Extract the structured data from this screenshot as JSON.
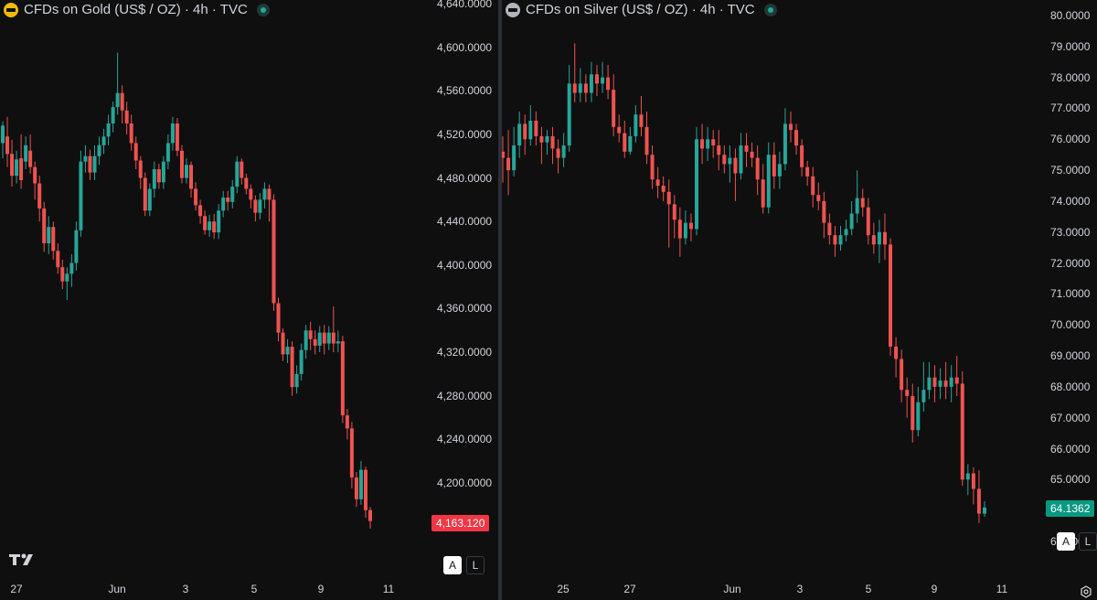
{
  "colors": {
    "up": "#26a69a",
    "down": "#ef5350",
    "bg": "#0f0f0f",
    "text": "#d1d4dc"
  },
  "left": {
    "legend": {
      "title": "CFDs on Gold (US$ / OZ) · 4h · TVC",
      "icon": "gold-icon"
    },
    "price_axis": [
      "4,640.0000",
      "4,600.0000",
      "4,560.0000",
      "4,520.0000",
      "4,480.0000",
      "4,440.0000",
      "4,400.0000",
      "4,360.0000",
      "4,320.0000",
      "4,280.0000",
      "4,240.0000",
      "4,200.0000"
    ],
    "last_price": "4,163.120",
    "time_axis": [
      "27",
      "Jun",
      "3",
      "5",
      "9",
      "11"
    ],
    "scale_buttons": {
      "auto": "A",
      "log": "L"
    },
    "candles": [
      [
        4512,
        4528,
        4498,
        4532
      ],
      [
        4518,
        4502,
        4490,
        4536
      ],
      [
        4502,
        4482,
        4472,
        4515
      ],
      [
        4482,
        4497,
        4475,
        4505
      ],
      [
        4498,
        4478,
        4470,
        4520
      ],
      [
        4495,
        4510,
        4488,
        4518
      ],
      [
        4505,
        4490,
        4484,
        4520
      ],
      [
        4490,
        4475,
        4460,
        4495
      ],
      [
        4475,
        4452,
        4440,
        4482
      ],
      [
        4452,
        4420,
        4412,
        4458
      ],
      [
        4420,
        4435,
        4410,
        4445
      ],
      [
        4435,
        4413,
        4405,
        4440
      ],
      [
        4413,
        4398,
        4392,
        4420
      ],
      [
        4398,
        4385,
        4378,
        4405
      ],
      [
        4385,
        4392,
        4368,
        4398
      ],
      [
        4392,
        4402,
        4380,
        4410
      ],
      [
        4402,
        4432,
        4395,
        4440
      ],
      [
        4432,
        4495,
        4426,
        4505
      ],
      [
        4495,
        4500,
        4485,
        4510
      ],
      [
        4500,
        4485,
        4478,
        4506
      ],
      [
        4485,
        4500,
        4478,
        4510
      ],
      [
        4500,
        4510,
        4492,
        4518
      ],
      [
        4510,
        4518,
        4502,
        4525
      ],
      [
        4518,
        4530,
        4510,
        4538
      ],
      [
        4530,
        4545,
        4522,
        4550
      ],
      [
        4545,
        4558,
        4538,
        4595
      ],
      [
        4558,
        4542,
        4530,
        4565
      ],
      [
        4542,
        4530,
        4520,
        4550
      ],
      [
        4530,
        4512,
        4505,
        4538
      ],
      [
        4512,
        4496,
        4488,
        4518
      ],
      [
        4496,
        4480,
        4470,
        4500
      ],
      [
        4480,
        4450,
        4445,
        4485
      ],
      [
        4450,
        4470,
        4445,
        4475
      ],
      [
        4470,
        4488,
        4462,
        4495
      ],
      [
        4488,
        4476,
        4470,
        4493
      ],
      [
        4476,
        4495,
        4470,
        4500
      ],
      [
        4495,
        4512,
        4488,
        4520
      ],
      [
        4512,
        4530,
        4505,
        4536
      ],
      [
        4530,
        4505,
        4500,
        4535
      ],
      [
        4505,
        4480,
        4475,
        4510
      ],
      [
        4480,
        4492,
        4475,
        4498
      ],
      [
        4492,
        4470,
        4462,
        4495
      ],
      [
        4470,
        4455,
        4450,
        4476
      ],
      [
        4455,
        4445,
        4438,
        4460
      ],
      [
        4445,
        4432,
        4428,
        4450
      ],
      [
        4432,
        4440,
        4426,
        4446
      ],
      [
        4440,
        4430,
        4424,
        4447
      ],
      [
        4430,
        4450,
        4424,
        4456
      ],
      [
        4450,
        4462,
        4444,
        4468
      ],
      [
        4462,
        4458,
        4450,
        4468
      ],
      [
        4458,
        4472,
        4452,
        4478
      ],
      [
        4472,
        4495,
        4466,
        4500
      ],
      [
        4495,
        4480,
        4474,
        4498
      ],
      [
        4480,
        4470,
        4465,
        4484
      ],
      [
        4470,
        4460,
        4452,
        4474
      ],
      [
        4460,
        4448,
        4440,
        4464
      ],
      [
        4448,
        4460,
        4442,
        4466
      ],
      [
        4460,
        4470,
        4452,
        4476
      ],
      [
        4470,
        4460,
        4440,
        4474
      ],
      [
        4460,
        4365,
        4358,
        4465
      ],
      [
        4365,
        4338,
        4330,
        4370
      ],
      [
        4338,
        4318,
        4312,
        4342
      ],
      [
        4318,
        4325,
        4310,
        4332
      ],
      [
        4325,
        4288,
        4280,
        4330
      ],
      [
        4288,
        4300,
        4282,
        4308
      ],
      [
        4300,
        4322,
        4294,
        4328
      ],
      [
        4322,
        4340,
        4314,
        4345
      ],
      [
        4340,
        4332,
        4322,
        4348
      ],
      [
        4332,
        4326,
        4318,
        4340
      ],
      [
        4326,
        4338,
        4320,
        4344
      ],
      [
        4338,
        4328,
        4318,
        4345
      ],
      [
        4328,
        4338,
        4322,
        4344
      ],
      [
        4338,
        4328,
        4320,
        4362
      ],
      [
        4328,
        4330,
        4320,
        4340
      ],
      [
        4330,
        4262,
        4255,
        4335
      ],
      [
        4262,
        4250,
        4240,
        4268
      ],
      [
        4250,
        4205,
        4195,
        4256
      ],
      [
        4205,
        4185,
        4178,
        4210
      ],
      [
        4185,
        4212,
        4180,
        4220
      ],
      [
        4212,
        4175,
        4168,
        4215
      ],
      [
        4175,
        4165,
        4158,
        4178
      ]
    ]
  },
  "right": {
    "legend": {
      "title": "CFDs on Silver (US$ / OZ) · 4h · TVC",
      "icon": "silver-icon"
    },
    "price_axis": [
      "80.0000",
      "79.0000",
      "78.0000",
      "77.0000",
      "76.0000",
      "75.0000",
      "74.0000",
      "73.0000",
      "72.0000",
      "71.0000",
      "70.0000",
      "69.0000",
      "68.0000",
      "67.0000",
      "66.0000",
      "65.0000",
      "63.0000"
    ],
    "last_price": "64.1362",
    "time_axis": [
      "25",
      "27",
      "Jun",
      "3",
      "5",
      "9",
      "11"
    ],
    "scale_buttons": {
      "auto": "A",
      "log": "L"
    },
    "candles": [
      [
        75.6,
        75.4,
        74.6,
        76.1
      ],
      [
        75.4,
        75.0,
        74.2,
        76.3
      ],
      [
        75.0,
        75.8,
        74.8,
        76.4
      ],
      [
        75.8,
        76.5,
        75.4,
        76.9
      ],
      [
        76.5,
        76.0,
        75.5,
        76.8
      ],
      [
        76.0,
        76.6,
        75.8,
        77.1
      ],
      [
        76.6,
        76.1,
        75.8,
        76.9
      ],
      [
        76.1,
        75.9,
        75.2,
        76.4
      ],
      [
        75.9,
        76.1,
        75.5,
        76.3
      ],
      [
        76.1,
        75.7,
        75.2,
        76.4
      ],
      [
        75.7,
        75.4,
        74.9,
        76.0
      ],
      [
        75.4,
        75.8,
        75.1,
        76.2
      ],
      [
        75.8,
        77.8,
        75.6,
        78.4
      ],
      [
        77.8,
        77.5,
        77.2,
        79.1
      ],
      [
        77.5,
        77.8,
        77.2,
        78.3
      ],
      [
        77.8,
        77.5,
        77.2,
        78.1
      ],
      [
        77.5,
        78.1,
        77.2,
        78.5
      ],
      [
        78.1,
        77.8,
        77.4,
        78.4
      ],
      [
        77.8,
        78.0,
        77.5,
        78.5
      ],
      [
        78.0,
        77.6,
        77.3,
        78.4
      ],
      [
        77.6,
        76.4,
        76.1,
        78.1
      ],
      [
        76.4,
        76.2,
        75.9,
        76.8
      ],
      [
        76.2,
        75.6,
        75.4,
        76.6
      ],
      [
        75.6,
        76.1,
        75.5,
        76.4
      ],
      [
        76.1,
        76.8,
        75.9,
        77.1
      ],
      [
        76.8,
        76.4,
        76.1,
        77.4
      ],
      [
        76.4,
        75.5,
        75.2,
        76.9
      ],
      [
        75.5,
        74.7,
        74.4,
        75.8
      ],
      [
        74.7,
        74.5,
        74.1,
        75.1
      ],
      [
        74.5,
        74.3,
        74.0,
        74.8
      ],
      [
        74.3,
        73.9,
        72.5,
        74.7
      ],
      [
        73.9,
        73.4,
        72.8,
        74.2
      ],
      [
        73.4,
        72.8,
        72.2,
        73.8
      ],
      [
        72.8,
        73.3,
        72.6,
        73.7
      ],
      [
        73.3,
        73.1,
        72.7,
        73.6
      ],
      [
        73.1,
        76.0,
        72.9,
        76.4
      ],
      [
        76.0,
        75.7,
        75.2,
        76.5
      ],
      [
        75.7,
        76.0,
        75.3,
        76.4
      ],
      [
        76.0,
        75.8,
        75.4,
        76.3
      ],
      [
        75.8,
        75.5,
        75.0,
        76.3
      ],
      [
        75.5,
        75.2,
        74.9,
        75.8
      ],
      [
        75.2,
        75.4,
        74.6,
        75.8
      ],
      [
        75.4,
        74.9,
        74.0,
        75.7
      ],
      [
        74.9,
        75.8,
        74.7,
        76.2
      ],
      [
        75.8,
        75.6,
        75.1,
        76.2
      ],
      [
        75.6,
        75.4,
        75.1,
        75.9
      ],
      [
        75.4,
        74.7,
        74.2,
        75.8
      ],
      [
        74.7,
        73.8,
        73.6,
        75.2
      ],
      [
        73.8,
        75.5,
        73.6,
        75.9
      ],
      [
        75.5,
        74.8,
        74.4,
        75.9
      ],
      [
        74.8,
        75.2,
        74.4,
        75.6
      ],
      [
        75.2,
        76.5,
        75.0,
        77.0
      ],
      [
        76.5,
        76.3,
        75.9,
        76.9
      ],
      [
        76.3,
        75.8,
        75.5,
        76.5
      ],
      [
        75.8,
        75.1,
        74.8,
        76.0
      ],
      [
        75.1,
        74.8,
        74.5,
        75.3
      ],
      [
        74.8,
        74.2,
        73.8,
        75.1
      ],
      [
        74.2,
        74.0,
        73.7,
        74.6
      ],
      [
        74.0,
        73.3,
        72.8,
        74.3
      ],
      [
        73.3,
        72.9,
        72.6,
        73.6
      ],
      [
        72.9,
        72.6,
        72.2,
        73.2
      ],
      [
        72.6,
        72.9,
        72.4,
        73.2
      ],
      [
        72.9,
        73.1,
        72.7,
        73.4
      ],
      [
        73.1,
        73.6,
        72.9,
        74.0
      ],
      [
        73.6,
        74.1,
        73.3,
        75.0
      ],
      [
        74.1,
        73.8,
        73.5,
        74.4
      ],
      [
        73.8,
        72.9,
        72.6,
        74.1
      ],
      [
        72.9,
        72.6,
        72.3,
        73.3
      ],
      [
        72.6,
        73.0,
        72.0,
        73.4
      ],
      [
        73.0,
        72.6,
        72.1,
        73.6
      ],
      [
        72.6,
        69.3,
        69.0,
        72.8
      ],
      [
        69.3,
        68.9,
        68.3,
        69.6
      ],
      [
        68.9,
        67.9,
        67.5,
        69.2
      ],
      [
        67.9,
        67.7,
        67.0,
        68.3
      ],
      [
        67.7,
        66.6,
        66.2,
        68.1
      ],
      [
        66.6,
        67.5,
        66.4,
        68.0
      ],
      [
        67.5,
        67.9,
        67.2,
        68.8
      ],
      [
        67.9,
        68.3,
        67.6,
        68.8
      ],
      [
        68.3,
        68.0,
        67.5,
        68.7
      ],
      [
        68.0,
        68.2,
        67.6,
        68.6
      ],
      [
        68.2,
        68.0,
        67.6,
        68.8
      ],
      [
        68.0,
        68.3,
        67.5,
        68.7
      ],
      [
        68.3,
        68.1,
        67.7,
        69.0
      ],
      [
        68.1,
        65.0,
        64.8,
        68.5
      ],
      [
        65.0,
        65.2,
        64.5,
        65.5
      ],
      [
        65.2,
        64.7,
        64.2,
        65.4
      ],
      [
        64.7,
        63.9,
        63.6,
        65.3
      ],
      [
        63.9,
        64.1,
        63.8,
        64.3
      ]
    ]
  }
}
